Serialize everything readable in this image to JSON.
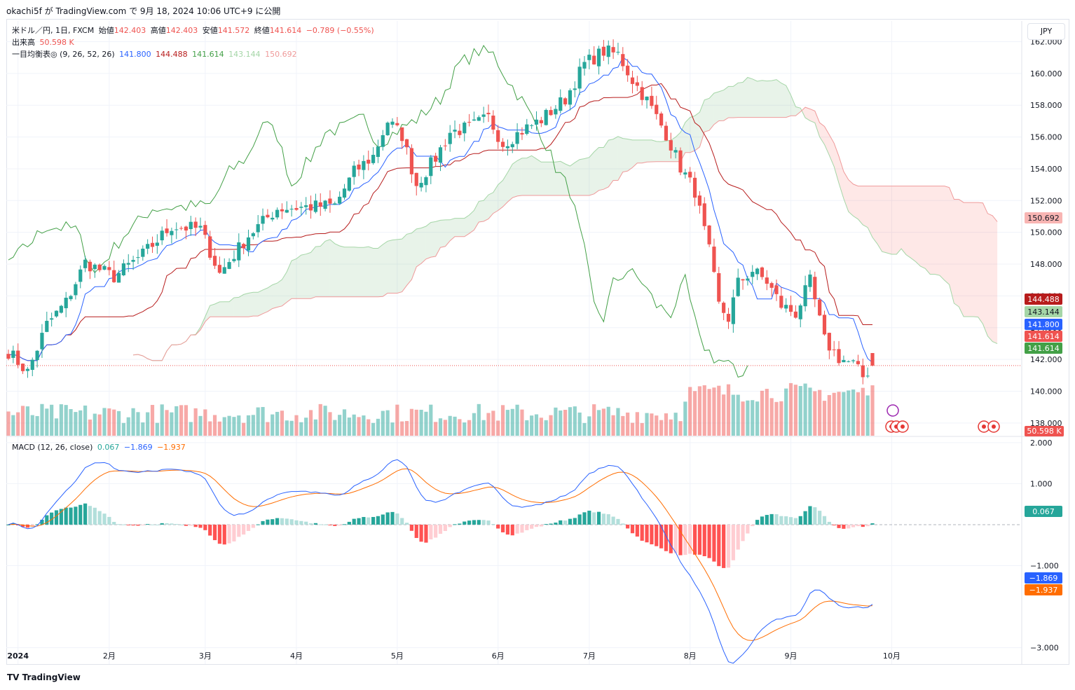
{
  "header": {
    "text": "okachi5f が TradingView.com で 9月 18, 2024 10:06 UTC+9 に公開"
  },
  "currency_button": "JPY",
  "legend": {
    "symbol": "米ドル／円, 1日, FXCM",
    "open_label": "始値",
    "open": "142.403",
    "high_label": "高値",
    "high": "142.403",
    "low_label": "安値",
    "low": "141.572",
    "close_label": "終値",
    "close": "141.614",
    "change": "−0.789 (−0.55%)",
    "volume_label": "出来高",
    "volume": "50.598 K",
    "ichimoku_label": "一目均衡表◎ (9, 26, 52, 26)",
    "ichimoku_values": [
      "141.800",
      "144.488",
      "141.614",
      "143.144",
      "150.692"
    ],
    "macd_label": "MACD (12, 26, close)",
    "macd_values": [
      "0.067",
      "−1.869",
      "−1.937"
    ]
  },
  "footer": "TradingView",
  "colors": {
    "up": "#26a69a",
    "down": "#ef5350",
    "tenkan": "#2962ff",
    "kijun": "#b71c1c",
    "chikou": "#43a047",
    "spanA": "#a5d6a7",
    "spanB": "#ef9a9a",
    "macd": "#2962ff",
    "signal": "#ff6d00"
  },
  "price_tags": [
    {
      "label": "150.692",
      "color": "#f8b5b3",
      "text_color": "#131722",
      "value": 150.692
    },
    {
      "label": "144.488",
      "color": "#b71c1c",
      "text_color": "#ffffff",
      "value": 144.488
    },
    {
      "label": "143.144",
      "color": "#a5d6a7",
      "text_color": "#131722",
      "value": 143.144
    },
    {
      "label": "141.800",
      "color": "#2962ff",
      "text_color": "#ffffff",
      "value": 141.8
    },
    {
      "label": "141.614",
      "color": "#ef5350",
      "text_color": "#ffffff",
      "value": 141.614
    },
    {
      "label": "141.614",
      "color": "#43a047",
      "text_color": "#ffffff",
      "value": 141.614
    }
  ],
  "volume_tag": "50.598 K",
  "macd_tags": [
    {
      "label": "0.067",
      "color": "#26a69a",
      "value": 0.067
    },
    {
      "label": "−1.869",
      "color": "#2962ff",
      "value": -1.869
    },
    {
      "label": "−1.937",
      "color": "#ff6d00",
      "value": -1.937
    }
  ],
  "chart_data": {
    "type": "candlestick",
    "symbol": "USD/JPY",
    "interval": "1D",
    "price_axis": {
      "ticks": [
        "162.000",
        "160.000",
        "158.000",
        "156.000",
        "154.000",
        "152.000",
        "150.000",
        "148.000",
        "146.000",
        "144.000",
        "142.000",
        "140.000",
        "138.000"
      ],
      "values": [
        162,
        160,
        158,
        156,
        154,
        152,
        150,
        148,
        146,
        144,
        142,
        140,
        138
      ],
      "range": [
        137.2,
        163.3
      ]
    },
    "macd_axis": {
      "ticks": [
        "2.000",
        "1.000",
        "−1.000",
        "−3.000"
      ],
      "values": [
        2,
        1,
        -1,
        -3
      ],
      "range": [
        -3.4,
        2.1
      ]
    },
    "time_axis": {
      "labels": [
        "2024",
        "2月",
        "3月",
        "4月",
        "5月",
        "6月",
        "7月",
        "8月",
        "9月",
        "10月"
      ],
      "bar_index": [
        2,
        21,
        41,
        60,
        81,
        102,
        121,
        142,
        163,
        184
      ],
      "bold_first": true
    },
    "future_bars": 26,
    "anchors": [
      {
        "i": 0,
        "v": 142.5
      },
      {
        "i": 4,
        "v": 141.2
      },
      {
        "i": 8,
        "v": 144.2
      },
      {
        "i": 12,
        "v": 145.6
      },
      {
        "i": 16,
        "v": 148.1
      },
      {
        "i": 22,
        "v": 147.2
      },
      {
        "i": 28,
        "v": 148.6
      },
      {
        "i": 34,
        "v": 150.4
      },
      {
        "i": 40,
        "v": 150.2
      },
      {
        "i": 44,
        "v": 147.4
      },
      {
        "i": 50,
        "v": 149.8
      },
      {
        "i": 56,
        "v": 151.5
      },
      {
        "i": 62,
        "v": 151.6
      },
      {
        "i": 68,
        "v": 151.7
      },
      {
        "i": 72,
        "v": 153.8
      },
      {
        "i": 76,
        "v": 154.8
      },
      {
        "i": 79,
        "v": 157.0
      },
      {
        "i": 82,
        "v": 156.1
      },
      {
        "i": 85,
        "v": 153.0
      },
      {
        "i": 89,
        "v": 154.7
      },
      {
        "i": 92,
        "v": 156.3
      },
      {
        "i": 96,
        "v": 156.6
      },
      {
        "i": 100,
        "v": 157.2
      },
      {
        "i": 103,
        "v": 155.6
      },
      {
        "i": 107,
        "v": 156.4
      },
      {
        "i": 111,
        "v": 157.1
      },
      {
        "i": 116,
        "v": 158.4
      },
      {
        "i": 120,
        "v": 160.6
      },
      {
        "i": 124,
        "v": 161.4
      },
      {
        "i": 127,
        "v": 161.2
      },
      {
        "i": 130,
        "v": 159.6
      },
      {
        "i": 133,
        "v": 158.3
      },
      {
        "i": 137,
        "v": 156.2
      },
      {
        "i": 140,
        "v": 154.1
      },
      {
        "i": 143,
        "v": 152.6
      },
      {
        "i": 146,
        "v": 148.8
      },
      {
        "i": 148,
        "v": 145.4
      },
      {
        "i": 150,
        "v": 144.6
      },
      {
        "i": 152,
        "v": 146.8
      },
      {
        "i": 155,
        "v": 147.6
      },
      {
        "i": 158,
        "v": 146.9
      },
      {
        "i": 161,
        "v": 145.4
      },
      {
        "i": 164,
        "v": 144.9
      },
      {
        "i": 167,
        "v": 146.9
      },
      {
        "i": 170,
        "v": 143.2
      },
      {
        "i": 173,
        "v": 142.1
      },
      {
        "i": 176,
        "v": 141.7
      },
      {
        "i": 178,
        "v": 140.9
      },
      {
        "i": 180,
        "v": 141.614
      }
    ],
    "last_bar": {
      "open": 142.403,
      "high": 142.403,
      "low": 141.572,
      "close": 141.614
    },
    "volume_last": "50.598 K",
    "ichimoku_last": {
      "tenkan": 141.8,
      "kijun": 144.488,
      "chikou": 141.614,
      "span_a": 143.144,
      "span_b": 150.692
    },
    "macd_last": {
      "histogram": 0.067,
      "macd": -1.869,
      "signal": -1.937
    }
  }
}
